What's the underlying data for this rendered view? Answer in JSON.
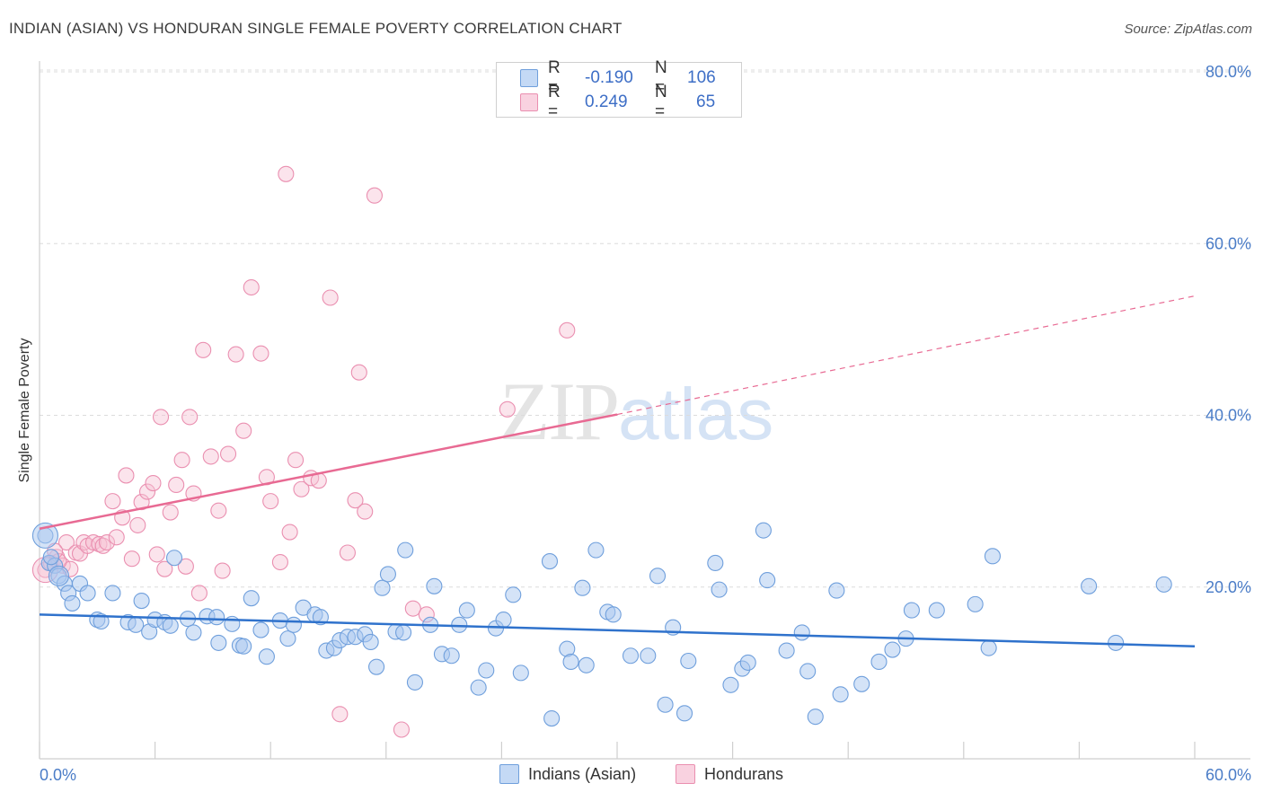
{
  "header": {
    "title": "INDIAN (ASIAN) VS HONDURAN SINGLE FEMALE POVERTY CORRELATION CHART",
    "source": "Source: ZipAtlas.com"
  },
  "watermark": {
    "zip": "ZIP",
    "atlas": "atlas"
  },
  "legend_top": {
    "rows": [
      {
        "r_label": "R =",
        "r_value": "-0.190",
        "n_label": "N =",
        "n_value": "106",
        "color": "#a9c8f0"
      },
      {
        "r_label": "R =",
        "r_value": "0.249",
        "n_label": "N =",
        "n_value": "65",
        "color": "#f5bcd0"
      }
    ]
  },
  "legend_bottom": {
    "items": [
      {
        "label": "Indians (Asian)",
        "color": "#a9c8f0"
      },
      {
        "label": "Hondurans",
        "color": "#f5bcd0"
      }
    ]
  },
  "chart_data": {
    "type": "scatter",
    "title": "INDIAN (ASIAN) VS HONDURAN SINGLE FEMALE POVERTY CORRELATION CHART",
    "ylabel": "Single Female Poverty",
    "xlabel": "",
    "xlim": [
      0,
      60
    ],
    "ylim": [
      0,
      80
    ],
    "x_tick_labels": [
      "0.0%",
      "60.0%"
    ],
    "y_tick_labels": [
      "20.0%",
      "40.0%",
      "60.0%",
      "80.0%"
    ],
    "y_ticks": [
      20,
      40,
      60,
      80
    ],
    "grid": "horizontal dashed",
    "legend_position": "bottom",
    "colors": {
      "indians_fill": "#a9c8f0",
      "indians_stroke": "#6f9fdc",
      "indians_line": "#2f72cc",
      "hondurans_fill": "#f7c3d4",
      "hondurans_stroke": "#ea8fb0",
      "hondurans_line": "#e86a93"
    },
    "series": [
      {
        "name": "Indians (Asian)",
        "r": -0.19,
        "n": 106,
        "trend": {
          "x": [
            0,
            60
          ],
          "y": [
            16.8,
            13.1
          ]
        },
        "points": [
          [
            0.3,
            26.0
          ],
          [
            0.5,
            22.8
          ],
          [
            0.8,
            22.5
          ],
          [
            1.0,
            21.3
          ],
          [
            1.3,
            20.4
          ],
          [
            1.5,
            19.3
          ],
          [
            1.7,
            18.1
          ],
          [
            2.1,
            20.4
          ],
          [
            2.5,
            19.3
          ],
          [
            3.0,
            16.2
          ],
          [
            3.2,
            16.0
          ],
          [
            3.8,
            19.3
          ],
          [
            4.6,
            15.9
          ],
          [
            5.0,
            15.6
          ],
          [
            5.3,
            18.4
          ],
          [
            5.7,
            14.8
          ],
          [
            6.0,
            16.2
          ],
          [
            6.5,
            15.9
          ],
          [
            6.8,
            15.5
          ],
          [
            7.0,
            23.4
          ],
          [
            7.7,
            16.3
          ],
          [
            8.0,
            14.7
          ],
          [
            8.7,
            16.6
          ],
          [
            9.2,
            16.5
          ],
          [
            9.3,
            13.5
          ],
          [
            10.0,
            15.7
          ],
          [
            10.4,
            13.2
          ],
          [
            10.6,
            13.1
          ],
          [
            11.0,
            18.7
          ],
          [
            11.5,
            15.0
          ],
          [
            11.8,
            11.9
          ],
          [
            12.5,
            16.1
          ],
          [
            12.9,
            14.0
          ],
          [
            13.2,
            15.6
          ],
          [
            13.7,
            17.6
          ],
          [
            14.3,
            16.8
          ],
          [
            14.6,
            16.5
          ],
          [
            14.9,
            12.6
          ],
          [
            15.3,
            12.9
          ],
          [
            15.6,
            13.8
          ],
          [
            16.0,
            14.2
          ],
          [
            16.4,
            14.2
          ],
          [
            16.9,
            14.5
          ],
          [
            17.2,
            13.6
          ],
          [
            17.5,
            10.7
          ],
          [
            17.8,
            19.9
          ],
          [
            18.1,
            21.5
          ],
          [
            18.5,
            14.8
          ],
          [
            18.9,
            14.7
          ],
          [
            19.0,
            24.3
          ],
          [
            19.5,
            8.9
          ],
          [
            20.3,
            15.6
          ],
          [
            20.5,
            20.1
          ],
          [
            20.9,
            12.2
          ],
          [
            21.4,
            12.0
          ],
          [
            21.8,
            15.6
          ],
          [
            22.2,
            17.3
          ],
          [
            22.8,
            8.3
          ],
          [
            23.2,
            10.3
          ],
          [
            23.7,
            15.2
          ],
          [
            24.1,
            16.2
          ],
          [
            24.6,
            19.1
          ],
          [
            25.0,
            10.0
          ],
          [
            26.5,
            23.0
          ],
          [
            26.6,
            4.7
          ],
          [
            27.4,
            12.8
          ],
          [
            27.6,
            11.3
          ],
          [
            28.2,
            19.9
          ],
          [
            28.4,
            10.9
          ],
          [
            28.9,
            24.3
          ],
          [
            29.5,
            17.1
          ],
          [
            29.8,
            16.8
          ],
          [
            30.7,
            12.0
          ],
          [
            31.6,
            12.0
          ],
          [
            32.1,
            21.3
          ],
          [
            32.5,
            6.3
          ],
          [
            32.9,
            15.3
          ],
          [
            33.5,
            5.3
          ],
          [
            33.7,
            11.4
          ],
          [
            35.1,
            22.8
          ],
          [
            35.3,
            19.7
          ],
          [
            35.9,
            8.6
          ],
          [
            36.5,
            10.5
          ],
          [
            36.8,
            11.2
          ],
          [
            37.6,
            26.6
          ],
          [
            37.8,
            20.8
          ],
          [
            38.8,
            12.6
          ],
          [
            39.6,
            14.7
          ],
          [
            39.9,
            10.2
          ],
          [
            40.3,
            4.9
          ],
          [
            41.4,
            19.6
          ],
          [
            41.6,
            7.5
          ],
          [
            42.7,
            8.7
          ],
          [
            43.6,
            11.3
          ],
          [
            44.3,
            12.7
          ],
          [
            45.0,
            14.0
          ],
          [
            45.3,
            17.3
          ],
          [
            46.6,
            17.3
          ],
          [
            48.6,
            18.0
          ],
          [
            49.3,
            12.9
          ],
          [
            49.5,
            23.6
          ],
          [
            54.5,
            20.1
          ],
          [
            55.9,
            13.5
          ],
          [
            58.4,
            20.3
          ],
          [
            0.6,
            23.5
          ]
        ]
      },
      {
        "name": "Hondurans",
        "r": 0.249,
        "n": 65,
        "trend": {
          "x": [
            0,
            30
          ],
          "y": [
            26.8,
            40.1
          ]
        },
        "trend_extension": {
          "x": [
            30,
            60
          ],
          "y": [
            40.1,
            53.9
          ]
        },
        "points": [
          [
            0.3,
            22.0
          ],
          [
            0.6,
            22.8
          ],
          [
            0.9,
            23.5
          ],
          [
            1.2,
            22.5
          ],
          [
            1.4,
            25.2
          ],
          [
            1.6,
            22.1
          ],
          [
            1.9,
            24.0
          ],
          [
            2.1,
            23.9
          ],
          [
            2.3,
            25.2
          ],
          [
            2.5,
            24.8
          ],
          [
            2.8,
            25.2
          ],
          [
            3.1,
            25.0
          ],
          [
            3.3,
            24.8
          ],
          [
            3.5,
            25.2
          ],
          [
            3.8,
            30.0
          ],
          [
            4.0,
            25.8
          ],
          [
            4.3,
            28.1
          ],
          [
            4.5,
            33.0
          ],
          [
            4.8,
            23.3
          ],
          [
            5.1,
            27.2
          ],
          [
            5.3,
            29.9
          ],
          [
            5.6,
            31.1
          ],
          [
            5.9,
            32.1
          ],
          [
            6.1,
            23.8
          ],
          [
            6.3,
            39.8
          ],
          [
            6.5,
            22.1
          ],
          [
            6.8,
            28.7
          ],
          [
            7.1,
            31.9
          ],
          [
            7.4,
            34.8
          ],
          [
            7.6,
            22.4
          ],
          [
            7.8,
            39.8
          ],
          [
            8.0,
            30.9
          ],
          [
            8.3,
            19.3
          ],
          [
            8.5,
            47.6
          ],
          [
            8.9,
            35.2
          ],
          [
            9.3,
            28.9
          ],
          [
            9.5,
            21.9
          ],
          [
            9.8,
            35.5
          ],
          [
            10.2,
            47.1
          ],
          [
            10.6,
            38.2
          ],
          [
            11.0,
            54.9
          ],
          [
            11.5,
            47.2
          ],
          [
            11.8,
            32.8
          ],
          [
            12.0,
            30.0
          ],
          [
            12.5,
            22.9
          ],
          [
            12.8,
            68.1
          ],
          [
            13.0,
            26.4
          ],
          [
            13.3,
            34.8
          ],
          [
            13.6,
            31.4
          ],
          [
            14.1,
            32.7
          ],
          [
            14.5,
            32.4
          ],
          [
            15.1,
            53.7
          ],
          [
            15.6,
            5.2
          ],
          [
            16.0,
            24.0
          ],
          [
            16.4,
            30.1
          ],
          [
            16.6,
            45.0
          ],
          [
            16.9,
            28.8
          ],
          [
            17.4,
            65.6
          ],
          [
            18.8,
            3.4
          ],
          [
            19.4,
            17.5
          ],
          [
            20.1,
            16.8
          ],
          [
            24.3,
            40.7
          ],
          [
            27.4,
            49.9
          ],
          [
            1.0,
            23.0
          ],
          [
            0.8,
            24.2
          ]
        ]
      }
    ]
  }
}
